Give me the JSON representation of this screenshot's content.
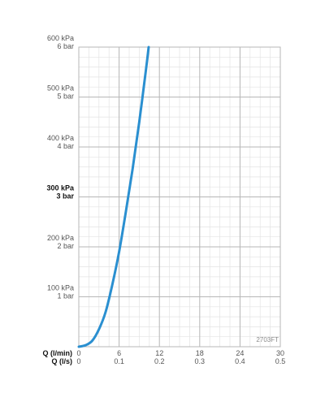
{
  "chart_data": {
    "type": "line",
    "series": [
      {
        "color": "#2a8fd0",
        "points": [
          [
            0,
            0
          ],
          [
            1,
            3
          ],
          [
            2,
            12
          ],
          [
            3,
            35
          ],
          [
            4,
            70
          ],
          [
            5,
            125
          ],
          [
            6,
            190
          ],
          [
            7,
            270
          ],
          [
            8,
            355
          ],
          [
            9,
            450
          ],
          [
            10,
            555
          ],
          [
            10.4,
            600
          ]
        ]
      }
    ],
    "x_ticks": [
      {
        "lpm": "0",
        "ls": "0",
        "value": 0
      },
      {
        "lpm": "6",
        "ls": "0.1",
        "value": 6
      },
      {
        "lpm": "12",
        "ls": "0.2",
        "value": 12
      },
      {
        "lpm": "18",
        "ls": "0.3",
        "value": 18
      },
      {
        "lpm": "24",
        "ls": "0.4",
        "value": 24
      },
      {
        "lpm": "30",
        "ls": "0.5",
        "value": 30
      }
    ],
    "y_ticks": [
      {
        "kpa": "100 kPa",
        "bar": "1 bar",
        "value": 100,
        "bold": false
      },
      {
        "kpa": "200 kPa",
        "bar": "2 bar",
        "value": 200,
        "bold": false
      },
      {
        "kpa": "300 kPa",
        "bar": "3 bar",
        "value": 300,
        "bold": true
      },
      {
        "kpa": "400 kPa",
        "bar": "4 bar",
        "value": 400,
        "bold": false
      },
      {
        "kpa": "500 kPa",
        "bar": "5 bar",
        "value": 500,
        "bold": false
      },
      {
        "kpa": "600 kPa",
        "bar": "6 bar",
        "value": 600,
        "bold": false
      }
    ],
    "x_axis_labels": {
      "lpm": "Q (l/min)",
      "ls": "Q (l/s)"
    },
    "xlim": [
      0,
      30
    ],
    "ylim": [
      0,
      600
    ],
    "minor_grid_x": 1.5,
    "minor_grid_y": 20,
    "grid": true,
    "watermark": "2703FT",
    "colors": {
      "curve": "#2a8fd0",
      "major_grid": "#b7b7b7",
      "minor_grid": "#e3e3e3",
      "text": "#555555",
      "bold_text": "#111111"
    }
  }
}
